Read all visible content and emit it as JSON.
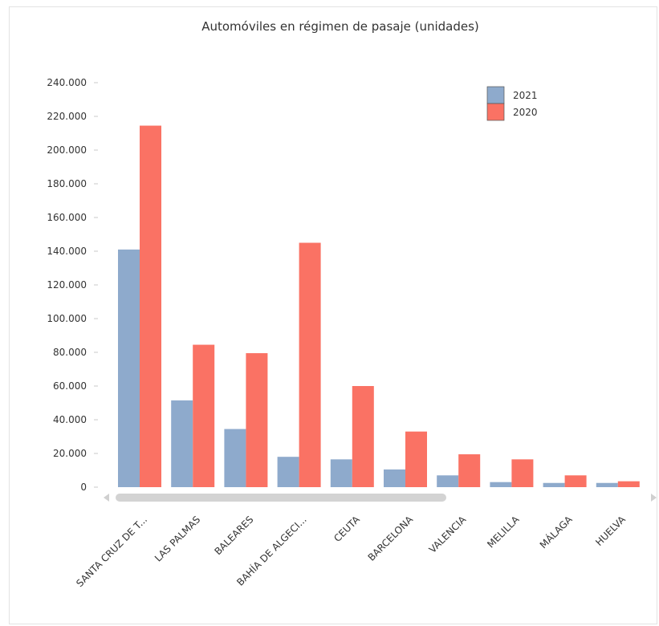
{
  "chart_data": {
    "type": "bar",
    "title": "Automóviles en régimen de pasaje (unidades)",
    "xlabel": "",
    "ylabel": "",
    "categories": [
      "SANTA CRUZ DE T...",
      "LAS PALMAS",
      "BALEARES",
      "BAHÍA DE ALGECI...",
      "CEUTA",
      "BARCELONA",
      "VALENCIA",
      "MELILLA",
      "MÁLAGA",
      "HUELVA"
    ],
    "series": [
      {
        "name": "2021",
        "color": "#8eaacc",
        "values": [
          141000,
          51500,
          34500,
          18000,
          16500,
          10500,
          7000,
          3000,
          2500,
          2500
        ]
      },
      {
        "name": "2020",
        "color": "#fa7264",
        "values": [
          214500,
          84500,
          79500,
          145000,
          60000,
          33000,
          19500,
          16500,
          7000,
          3500
        ]
      }
    ],
    "ylim": [
      0,
      240000
    ],
    "yticks": [
      "0",
      "20.000",
      "40.000",
      "60.000",
      "80.000",
      "100.000",
      "120.000",
      "140.000",
      "160.000",
      "180.000",
      "200.000",
      "220.000",
      "240.000"
    ],
    "legend_position": "top-right",
    "grid": false
  }
}
